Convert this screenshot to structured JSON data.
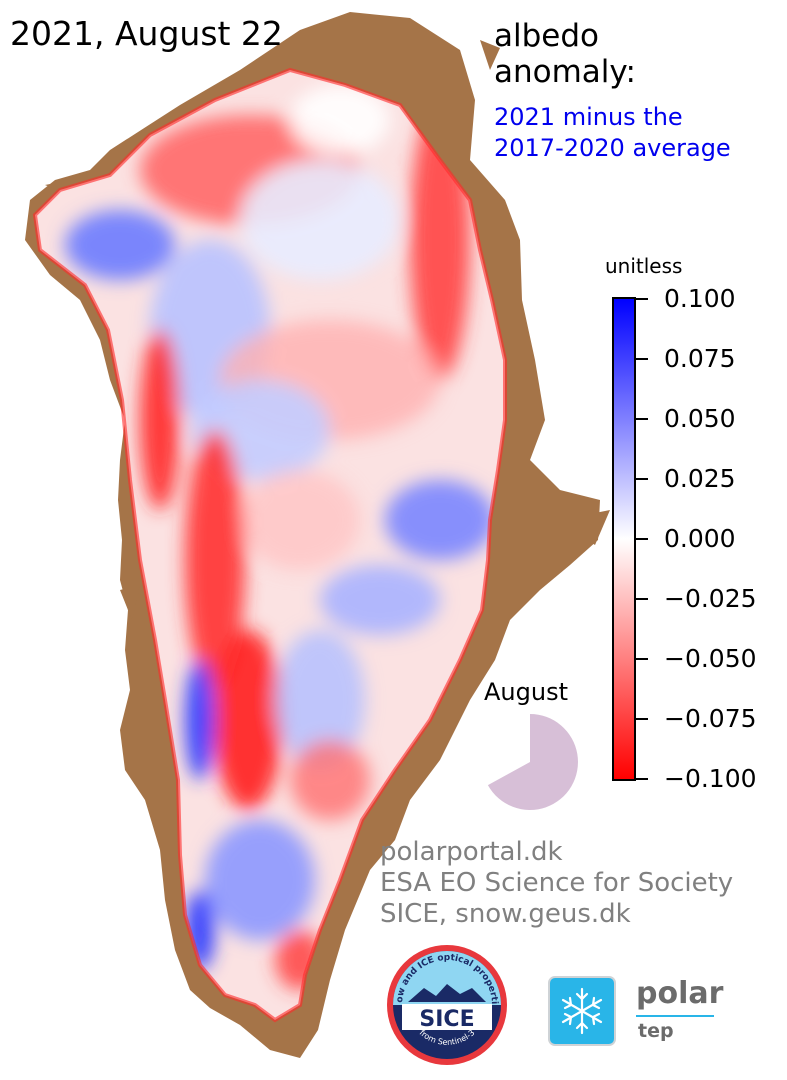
{
  "title": "2021, August 22",
  "heading": {
    "line1": "albedo",
    "line2": "anomaly:"
  },
  "subheading": {
    "line1": "2021 minus the",
    "line2": "2017-2020 average"
  },
  "colorbar": {
    "unit": "unitless",
    "min": -0.1,
    "max": 0.1,
    "colors": {
      "max": "#0000ff",
      "mid": "#ffffff",
      "min": "#ff0000"
    },
    "ticks": [
      "0.100",
      "0.075",
      "0.050",
      "0.025",
      "0.000",
      "−0.025",
      "−0.050",
      "−0.075",
      "−0.100"
    ]
  },
  "month_indicator": {
    "label": "August",
    "fraction": 0.67,
    "color": "#d7bfd7"
  },
  "credits": [
    "polarportal.dk",
    "ESA EO Science for Society",
    "SICE, snow.geus.dk"
  ],
  "colors": {
    "land": "#a57448",
    "ice_pos": "#2233ff",
    "ice_neg": "#ff1a1a"
  },
  "sice_logo": {
    "top_text": "Snow and ICE optical properties",
    "word": "SICE",
    "bottom_text": "from Sentinel-3"
  },
  "polar_tep": {
    "word": "polar",
    "sub": "tep",
    "icon": "snowflake-icon"
  }
}
